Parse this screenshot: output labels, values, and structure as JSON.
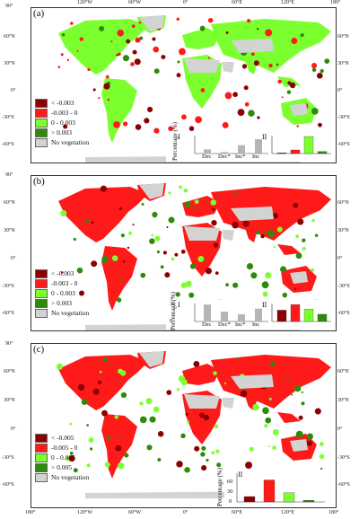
{
  "panels": [
    {
      "label": "(a)",
      "legend": [
        "< -0.003",
        "-0.003 - 0",
        "0 - 0.003",
        "> 0.003",
        "No vegetation"
      ],
      "chart_I": {
        "type": "bar",
        "ylabel": "Percentage (%)",
        "roman": "I",
        "categories": [
          "Dec",
          "Dec*",
          "Inc*",
          "Inc"
        ],
        "values": [
          14,
          5,
          28,
          48
        ],
        "ylim": [
          0,
          60
        ]
      },
      "chart_II": {
        "type": "bar",
        "roman": "II",
        "values": [
          3,
          16,
          76,
          9
        ],
        "ylim": [
          0,
          80
        ]
      },
      "lat_left": [
        "90°",
        "60°N",
        "30°N",
        "0°",
        "-30°S",
        "-60°S"
      ],
      "lat_right": [
        "60°N",
        "30°N",
        "0°",
        "-30°S",
        "-60°S"
      ],
      "lon_top": [
        "120°W",
        "60°W",
        "0°",
        "60°E",
        "120°E",
        "180°"
      ],
      "theme": "green"
    },
    {
      "label": "(b)",
      "legend": [
        "< -0.003",
        "-0.003 - 0",
        "0 - 0.003",
        "> 0.003",
        "No vegetation"
      ],
      "chart_I": {
        "type": "bar",
        "ylabel": "Percentage (%)",
        "roman": "I",
        "yticks": [
          "0",
          "10",
          "20",
          "30"
        ],
        "categories": [
          "Dec",
          "Dec*",
          "Inc*",
          "Inc"
        ],
        "values": [
          33,
          19,
          14,
          25
        ],
        "ylim": [
          0,
          35
        ]
      },
      "chart_II": {
        "type": "bar",
        "roman": "II",
        "values": [
          22,
          33,
          24,
          14
        ],
        "ylim": [
          0,
          35
        ]
      },
      "lat_left": [
        "90°",
        "60°N",
        "30°N",
        "0°",
        "-30°S",
        "-60°S"
      ],
      "lat_right": [
        "60°N",
        "30°N",
        "0°",
        "-30°S",
        "-60°S"
      ],
      "theme": "red"
    },
    {
      "label": "(c)",
      "legend": [
        "< -0.005",
        "-0.005 - 0",
        "0 - 0.005",
        "> 0.005",
        "No vegetation"
      ],
      "chart_II": {
        "type": "bar",
        "ylabel": "Percentage (%)",
        "roman": "II",
        "yticks": [
          "0",
          "30",
          "60"
        ],
        "values": [
          13,
          53,
          22,
          4
        ],
        "ylim": [
          0,
          65
        ]
      },
      "lat_left": [
        "90°",
        "60°N",
        "30°N",
        "0°",
        "-30°S",
        "-60°S"
      ],
      "lat_right": [
        "60°N",
        "30°N",
        "0°",
        "-30°S",
        "-60°S"
      ],
      "lon_bottom": [
        "180°",
        "120°W",
        "60°W",
        "0°",
        "60°E",
        "120°E",
        "180°"
      ],
      "theme": "red"
    }
  ],
  "colors": {
    "dark_red": "#8b0000",
    "red": "#ff1a1a",
    "light_green": "#7cff2e",
    "dark_green": "#2e8b0a",
    "no_veg": "#d3d3d3",
    "bar_grey": "#b5b5b5"
  }
}
